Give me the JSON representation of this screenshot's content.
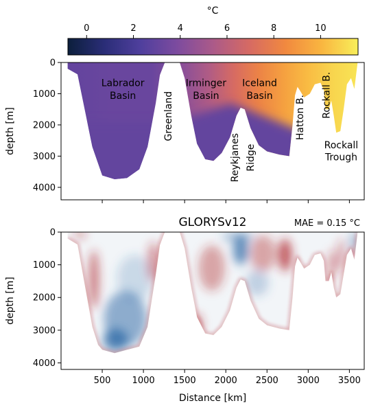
{
  "colorbar": {
    "label": "°C",
    "ticks": [
      0,
      2,
      4,
      6,
      8,
      10
    ],
    "range": [
      -0.8,
      11.6
    ],
    "stops": [
      "#0c1f3c",
      "#2a2d77",
      "#4f3f9d",
      "#7c4b9f",
      "#ab5a89",
      "#d66a63",
      "#f1893f",
      "#f9b640",
      "#f8ef5a"
    ]
  },
  "chart_data": [
    {
      "type": "heatmap",
      "title": "",
      "xlabel": "",
      "ylabel": "depth [m]",
      "xlim": [
        0,
        3680
      ],
      "ylim": [
        4400,
        0
      ],
      "xticks": [
        500,
        1000,
        1500,
        2000,
        2500,
        3000,
        3500
      ],
      "yticks": [
        0,
        1000,
        2000,
        3000,
        4000
      ],
      "yticklabels": [
        "0",
        "1000",
        "2000",
        "3000",
        "4000"
      ],
      "quantity": "temperature (°C)",
      "bathymetry": [
        [
          80,
          200
        ],
        [
          200,
          380
        ],
        [
          380,
          2700
        ],
        [
          500,
          3620
        ],
        [
          650,
          3740
        ],
        [
          800,
          3700
        ],
        [
          950,
          3420
        ],
        [
          1050,
          2700
        ],
        [
          1150,
          1300
        ],
        [
          1200,
          400
        ],
        [
          1260,
          0
        ],
        [
          1440,
          0
        ],
        [
          1500,
          500
        ],
        [
          1580,
          1700
        ],
        [
          1650,
          2600
        ],
        [
          1750,
          3100
        ],
        [
          1850,
          3150
        ],
        [
          1950,
          2900
        ],
        [
          2050,
          2400
        ],
        [
          2130,
          1700
        ],
        [
          2180,
          1450
        ],
        [
          2230,
          1500
        ],
        [
          2300,
          2100
        ],
        [
          2400,
          2650
        ],
        [
          2500,
          2850
        ],
        [
          2650,
          2950
        ],
        [
          2770,
          3000
        ],
        [
          2810,
          2000
        ],
        [
          2840,
          1050
        ],
        [
          2870,
          780
        ],
        [
          2900,
          900
        ],
        [
          2950,
          1120
        ],
        [
          3020,
          1000
        ],
        [
          3080,
          700
        ],
        [
          3150,
          650
        ],
        [
          3190,
          880
        ],
        [
          3210,
          1500
        ],
        [
          3250,
          1500
        ],
        [
          3280,
          1220
        ],
        [
          3310,
          1700
        ],
        [
          3340,
          2250
        ],
        [
          3390,
          2200
        ],
        [
          3430,
          1500
        ],
        [
          3470,
          700
        ],
        [
          3520,
          500
        ],
        [
          3560,
          850
        ],
        [
          3600,
          0
        ]
      ],
      "temperature_profile": [
        [
          80,
          3.0
        ],
        [
          600,
          3.2
        ],
        [
          1100,
          3.2
        ],
        [
          1500,
          4.4
        ],
        [
          1800,
          5.6
        ],
        [
          2100,
          7.0
        ],
        [
          2400,
          8.2
        ],
        [
          2700,
          9.3
        ],
        [
          3000,
          10.2
        ],
        [
          3300,
          10.9
        ],
        [
          3600,
          11.3
        ]
      ],
      "deep_temperature": 3.0,
      "labels": [
        {
          "text": "Labrador",
          "x": 750,
          "depth": 760
        },
        {
          "text": "Basin",
          "x": 750,
          "depth": 1170
        },
        {
          "text": "Greenland",
          "x": 1340,
          "depth": 1720,
          "rotation": -90
        },
        {
          "text": "Irminger",
          "x": 1760,
          "depth": 760
        },
        {
          "text": "Basin",
          "x": 1760,
          "depth": 1170
        },
        {
          "text": "Iceland",
          "x": 2410,
          "depth": 760
        },
        {
          "text": "Basin",
          "x": 2410,
          "depth": 1170
        },
        {
          "text": "Reykjanes",
          "x": 2150,
          "depth": 3050,
          "rotation": -90
        },
        {
          "text": "Ridge",
          "x": 2340,
          "depth": 3050,
          "rotation": -90
        },
        {
          "text": "Hatton B.",
          "x": 2940,
          "depth": 1760,
          "rotation": -90
        },
        {
          "text": "Rockall B.",
          "x": 3260,
          "depth": 1050,
          "rotation": -90
        },
        {
          "text": "Rockall",
          "x": 3400,
          "depth": 2750
        },
        {
          "text": "Trough",
          "x": 3400,
          "depth": 3140
        }
      ]
    },
    {
      "type": "heatmap",
      "title": "GLORYSv12",
      "annotation": "MAE = 0.15 °C",
      "xlabel": "Distance [km]",
      "ylabel": "depth [m]",
      "xlim": [
        0,
        3680
      ],
      "ylim": [
        4200,
        0
      ],
      "xticks": [
        500,
        1000,
        1500,
        2000,
        2500,
        3000,
        3500
      ],
      "xticklabels": [
        "500",
        "1000",
        "1500",
        "2000",
        "2500",
        "3000",
        "3500"
      ],
      "yticks": [
        0,
        1000,
        2000,
        3000,
        4000
      ],
      "yticklabels": [
        "0",
        "1000",
        "2000",
        "3000",
        "4000"
      ],
      "quantity": "temperature error (°C)",
      "error_colors": {
        "negative": "#2f6aa6",
        "positive": "#b0232a"
      },
      "bathymetry": [
        [
          80,
          200
        ],
        [
          200,
          380
        ],
        [
          380,
          2900
        ],
        [
          450,
          3450
        ],
        [
          500,
          3600
        ],
        [
          650,
          3700
        ],
        [
          800,
          3600
        ],
        [
          950,
          3500
        ],
        [
          1050,
          2900
        ],
        [
          1150,
          1300
        ],
        [
          1200,
          400
        ],
        [
          1260,
          0
        ],
        [
          1440,
          0
        ],
        [
          1500,
          500
        ],
        [
          1580,
          1700
        ],
        [
          1650,
          2600
        ],
        [
          1750,
          3100
        ],
        [
          1850,
          3150
        ],
        [
          1950,
          2900
        ],
        [
          2050,
          2400
        ],
        [
          2130,
          1700
        ],
        [
          2180,
          1450
        ],
        [
          2230,
          1500
        ],
        [
          2300,
          2100
        ],
        [
          2400,
          2650
        ],
        [
          2500,
          2850
        ],
        [
          2650,
          2950
        ],
        [
          2770,
          3000
        ],
        [
          2810,
          2000
        ],
        [
          2840,
          1050
        ],
        [
          2870,
          780
        ],
        [
          2900,
          900
        ],
        [
          2950,
          1120
        ],
        [
          3020,
          1000
        ],
        [
          3080,
          700
        ],
        [
          3150,
          650
        ],
        [
          3190,
          880
        ],
        [
          3210,
          1500
        ],
        [
          3250,
          1500
        ],
        [
          3280,
          1220
        ],
        [
          3310,
          1700
        ],
        [
          3340,
          2000
        ],
        [
          3390,
          1900
        ],
        [
          3430,
          1300
        ],
        [
          3470,
          700
        ],
        [
          3520,
          500
        ],
        [
          3560,
          850
        ],
        [
          3600,
          0
        ]
      ],
      "error_patches": [
        {
          "x": 400,
          "depth": 1450,
          "rx": 60,
          "rdepth": 900,
          "value": 0.45
        },
        {
          "x": 780,
          "depth": 2650,
          "rx": 260,
          "rdepth": 850,
          "value": -0.4
        },
        {
          "x": 660,
          "depth": 3300,
          "rx": 150,
          "rdepth": 340,
          "value": -0.6
        },
        {
          "x": 900,
          "depth": 1400,
          "rx": 220,
          "rdepth": 700,
          "value": -0.15
        },
        {
          "x": 1120,
          "depth": 900,
          "rx": 70,
          "rdepth": 600,
          "value": 0.35
        },
        {
          "x": 1830,
          "depth": 1100,
          "rx": 160,
          "rdepth": 700,
          "value": 0.3
        },
        {
          "x": 2180,
          "depth": 550,
          "rx": 90,
          "rdepth": 450,
          "value": -0.55
        },
        {
          "x": 2450,
          "depth": 650,
          "rx": 160,
          "rdepth": 550,
          "value": 0.3
        },
        {
          "x": 2720,
          "depth": 700,
          "rx": 80,
          "rdepth": 500,
          "value": 0.55
        },
        {
          "x": 2380,
          "depth": 1550,
          "rx": 140,
          "rdepth": 400,
          "value": -0.2
        },
        {
          "x": 3290,
          "depth": 1000,
          "rx": 40,
          "rdepth": 450,
          "value": 0.4
        },
        {
          "x": 3400,
          "depth": 700,
          "rx": 40,
          "rdepth": 500,
          "value": 0.35
        },
        {
          "x": 1650,
          "depth": 2800,
          "rx": 60,
          "rdepth": 300,
          "value": 0.45
        },
        {
          "x": 2150,
          "depth": 150,
          "rx": 200,
          "rdepth": 150,
          "value": -0.3
        },
        {
          "x": 230,
          "depth": 80,
          "rx": 70,
          "rdepth": 80,
          "value": 0.5
        },
        {
          "x": 3560,
          "depth": 300,
          "rx": 60,
          "rdepth": 300,
          "value": -0.3
        }
      ]
    }
  ]
}
